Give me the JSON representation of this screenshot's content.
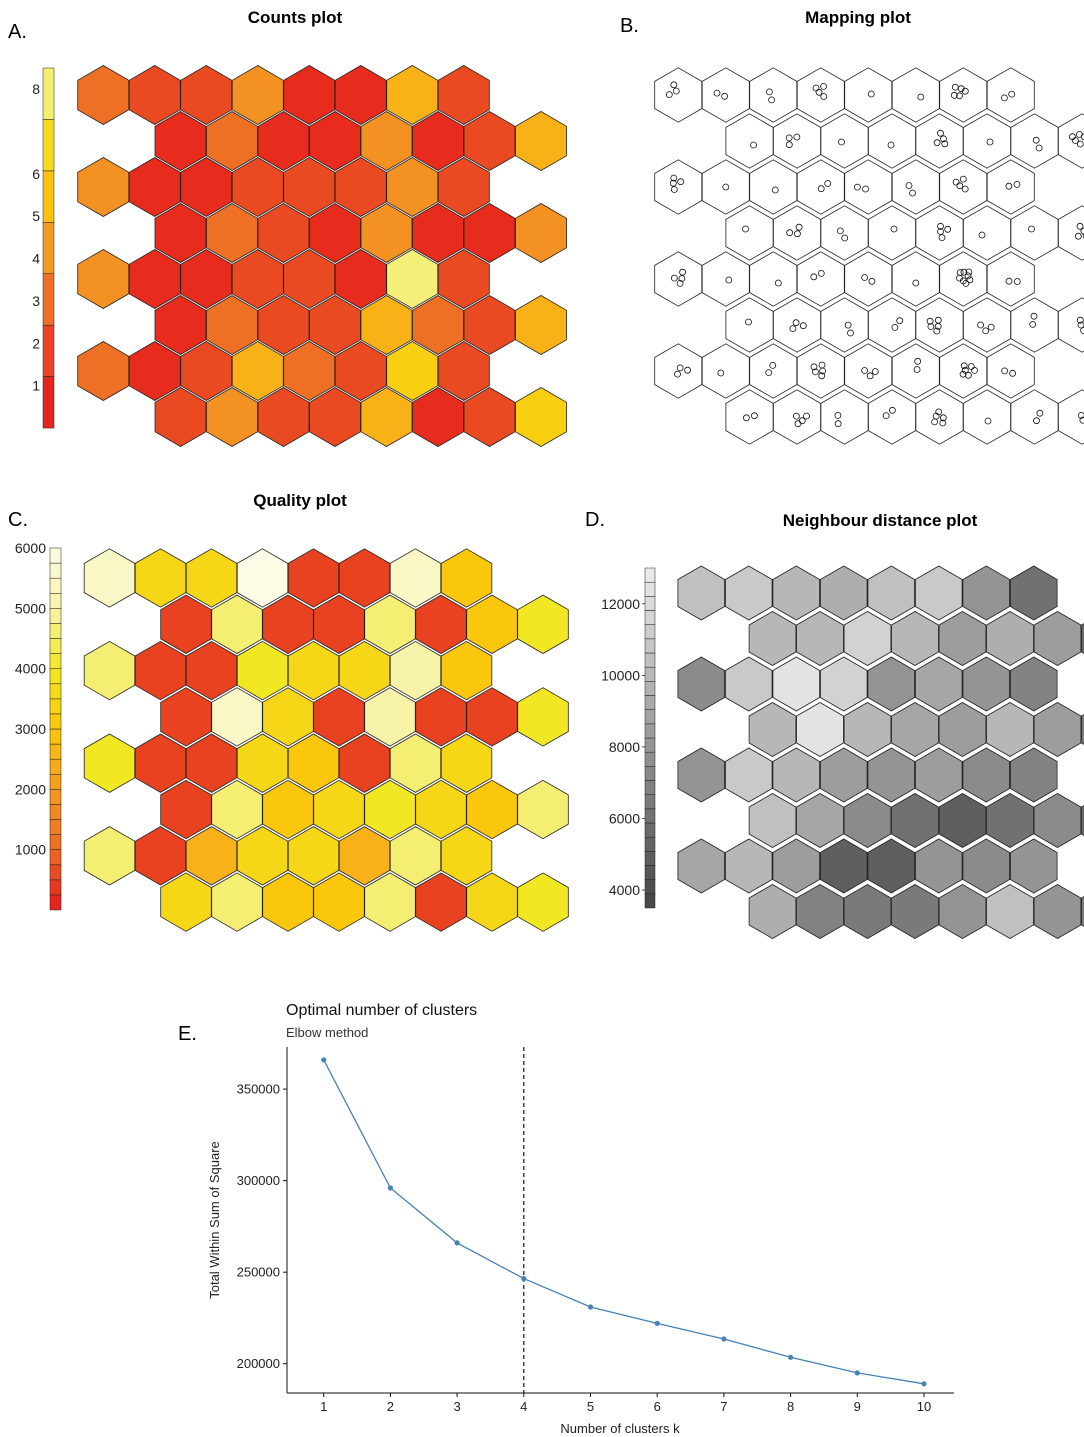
{
  "chart_data": [
    {
      "panel": "A.",
      "type": "heatmap",
      "title": "Counts plot",
      "grid": {
        "rows": 8,
        "cols": 9
      },
      "legend": {
        "ticks": [
          "1",
          "2",
          "3",
          "4",
          "5",
          "6",
          "8"
        ],
        "tick_values": [
          1,
          2,
          3,
          4,
          5,
          6,
          8
        ],
        "range": [
          0,
          8.5
        ],
        "colors": [
          "#e31a1c",
          "#e8331f",
          "#ed6a25",
          "#f49a23",
          "#fbc70c",
          "#f1e722",
          "#f6f3a8"
        ]
      },
      "values": [
        [
          3,
          2,
          2,
          4,
          1,
          1,
          5,
          2,
          null
        ],
        [
          null,
          1,
          3,
          1,
          1,
          4,
          1,
          2,
          5
        ],
        [
          4,
          1,
          1,
          2,
          2,
          2,
          4,
          2,
          null
        ],
        [
          null,
          1,
          3,
          2,
          1,
          4,
          1,
          1,
          4
        ],
        [
          4,
          1,
          1,
          2,
          2,
          1,
          8,
          2,
          null
        ],
        [
          null,
          1,
          3,
          2,
          2,
          5,
          3,
          2,
          5
        ],
        [
          3,
          1,
          2,
          5,
          3,
          2,
          6,
          2,
          null
        ],
        [
          null,
          2,
          4,
          2,
          2,
          5,
          1,
          2,
          6
        ]
      ]
    },
    {
      "panel": "B.",
      "type": "scatter",
      "title": "Mapping plot",
      "grid": {
        "rows": 8,
        "cols": 9
      },
      "counts": [
        [
          3,
          2,
          2,
          4,
          1,
          1,
          5,
          2,
          null
        ],
        [
          null,
          1,
          3,
          1,
          1,
          4,
          1,
          2,
          5
        ],
        [
          4,
          1,
          1,
          2,
          2,
          2,
          4,
          2,
          null
        ],
        [
          null,
          1,
          3,
          2,
          1,
          4,
          1,
          1,
          4
        ],
        [
          4,
          1,
          1,
          2,
          2,
          1,
          8,
          2,
          null
        ],
        [
          null,
          1,
          3,
          2,
          2,
          5,
          3,
          2,
          5
        ],
        [
          3,
          1,
          2,
          5,
          3,
          2,
          6,
          2,
          null
        ],
        [
          null,
          2,
          4,
          2,
          2,
          5,
          1,
          2,
          6
        ]
      ]
    },
    {
      "panel": "C.",
      "type": "heatmap",
      "title": "Quality plot",
      "grid": {
        "rows": 8,
        "cols": 9
      },
      "legend": {
        "ticks": [
          "1000",
          "2000",
          "3000",
          "4000",
          "5000",
          "6000"
        ],
        "tick_values": [
          1000,
          2000,
          3000,
          4000,
          5000,
          6000
        ],
        "range": [
          0,
          6000
        ],
        "colors": [
          "#e31a1c",
          "#ed6a25",
          "#f49a23",
          "#fbc70c",
          "#f1e722",
          "#f6f3a8",
          "#fdfbe6"
        ]
      },
      "values": [
        [
          5500,
          3500,
          3500,
          6000,
          500,
          500,
          5500,
          3000,
          null
        ],
        [
          null,
          500,
          4600,
          500,
          500,
          4600,
          500,
          3000,
          4000
        ],
        [
          4600,
          500,
          500,
          4000,
          3500,
          3500,
          5000,
          3000,
          null
        ],
        [
          null,
          500,
          5500,
          3500,
          500,
          5000,
          500,
          500,
          4000
        ],
        [
          4000,
          500,
          500,
          3500,
          3000,
          500,
          4600,
          3500,
          null
        ],
        [
          null,
          500,
          4600,
          3000,
          3500,
          4000,
          3500,
          3000,
          4600
        ],
        [
          4600,
          500,
          2500,
          3500,
          3500,
          2500,
          4600,
          3500,
          null
        ],
        [
          null,
          3500,
          4600,
          3000,
          3000,
          4600,
          500,
          3500,
          4000
        ]
      ]
    },
    {
      "panel": "D.",
      "type": "heatmap",
      "title": "Neighbour distance plot",
      "grid": {
        "rows": 8,
        "cols": 9
      },
      "legend": {
        "ticks": [
          "4000",
          "6000",
          "8000",
          "10000",
          "12000"
        ],
        "tick_values": [
          4000,
          6000,
          8000,
          10000,
          12000
        ],
        "range": [
          3500,
          13000
        ],
        "colors": [
          "#454545",
          "#ececec"
        ]
      },
      "values": [
        [
          10500,
          11000,
          10000,
          9500,
          10500,
          11000,
          8000,
          6000,
          null
        ],
        [
          null,
          10000,
          10000,
          11500,
          10000,
          8500,
          9500,
          8500,
          5500
        ],
        [
          7500,
          11000,
          12500,
          11500,
          8000,
          9000,
          8000,
          7000,
          null
        ],
        [
          null,
          10000,
          12500,
          10000,
          9000,
          8500,
          10000,
          8500,
          6500
        ],
        [
          8000,
          11000,
          10000,
          8500,
          8000,
          8500,
          7500,
          7000,
          null
        ],
        [
          null,
          10500,
          9000,
          7500,
          6000,
          5000,
          6000,
          7500,
          5500
        ],
        [
          9000,
          10000,
          8500,
          5000,
          5000,
          8000,
          7500,
          8000,
          null
        ],
        [
          null,
          9500,
          7000,
          6500,
          6500,
          8000,
          10500,
          8000,
          6500
        ]
      ]
    },
    {
      "panel": "E.",
      "type": "line",
      "title": "Optimal number of clusters",
      "subtitle": "Elbow method",
      "xlabel": "Number of clusters k",
      "ylabel": "Total Within Sum of Square",
      "x": [
        1,
        2,
        3,
        4,
        5,
        6,
        7,
        8,
        9,
        10
      ],
      "y": [
        366000,
        296000,
        266000,
        246500,
        231000,
        222000,
        213500,
        203500,
        195000,
        189000
      ],
      "xlim": [
        0.45,
        10.45
      ],
      "ylim": [
        184000,
        373000
      ],
      "yticks": [
        200000,
        250000,
        300000,
        350000
      ],
      "vline_x": 4,
      "color": "#4682b4"
    }
  ]
}
